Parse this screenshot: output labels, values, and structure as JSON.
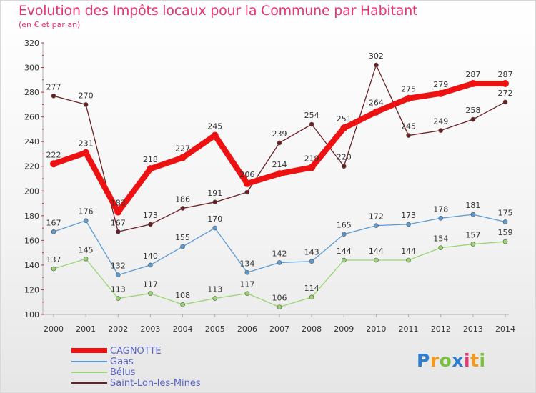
{
  "header": {
    "title": "Evolution des Impôts locaux pour la Commune par Habitant",
    "subtitle": "(en € et par an)"
  },
  "chart_data": {
    "type": "line",
    "title": "Evolution des Impôts locaux pour la Commune par Habitant",
    "subtitle": "(en € et par an)",
    "xlabel": "",
    "ylabel": "",
    "ylim": [
      100,
      320
    ],
    "ytick_step": 20,
    "grid": false,
    "legend_position": "bottom-left",
    "x": [
      "2000",
      "2001",
      "2002",
      "2003",
      "2004",
      "2005",
      "2006",
      "2007",
      "2008",
      "2009",
      "2010",
      "2011",
      "2012",
      "2013",
      "2014"
    ],
    "series": [
      {
        "name": "Saint-Lon-les-Mines",
        "color": "#6b1f23",
        "values": [
          277,
          270,
          167,
          173,
          186,
          191,
          199,
          239,
          254,
          220,
          302,
          245,
          249,
          258,
          272
        ],
        "labels": [
          "277",
          "270",
          "167",
          "173",
          "186",
          "191",
          "",
          "239",
          "254",
          "220",
          "302",
          "245",
          "249",
          "258",
          "272"
        ]
      },
      {
        "name": "Bélus",
        "color": "#99d671",
        "values": [
          137,
          145,
          113,
          117,
          108,
          113,
          117,
          106,
          114,
          144,
          144,
          144,
          154,
          157,
          159
        ],
        "labels": [
          "137",
          "145",
          "113",
          "117",
          "108",
          "113",
          "117",
          "106",
          "114",
          "144",
          "144",
          "144",
          "154",
          "157",
          "159"
        ]
      },
      {
        "name": "Gaas",
        "color": "#5d9bd3",
        "values": [
          167,
          176,
          132,
          140,
          155,
          170,
          134,
          142,
          143,
          165,
          172,
          173,
          178,
          181,
          175
        ],
        "labels": [
          "167",
          "176",
          "132",
          "140",
          "155",
          "170",
          "134",
          "142",
          "143",
          "165",
          "172",
          "173",
          "178",
          "181",
          "175"
        ]
      },
      {
        "name": "CAGNOTTE",
        "color": "#ee1111",
        "values": [
          222,
          231,
          183,
          218,
          227,
          245,
          206,
          214,
          219,
          251,
          264,
          275,
          279,
          287,
          287
        ],
        "labels": [
          "222",
          "231",
          "183",
          "218",
          "227",
          "245",
          "206",
          "214",
          "219",
          "251",
          "264",
          "275",
          "279",
          "287",
          "287"
        ]
      }
    ]
  },
  "legend": {
    "items": [
      {
        "name": "CAGNOTTE",
        "color": "#ee1111"
      },
      {
        "name": "Gaas",
        "color": "#5d9bd3"
      },
      {
        "name": "Bélus",
        "color": "#99d671"
      },
      {
        "name": "Saint-Lon-les-Mines",
        "color": "#6b1f23"
      }
    ]
  },
  "logo": {
    "letters": [
      {
        "char": "P",
        "color": "#2e7dd1"
      },
      {
        "char": "r",
        "color": "#f39a1e"
      },
      {
        "char": "o",
        "color": "#7cc242"
      },
      {
        "char": "x",
        "color": "#2e7dd1"
      },
      {
        "char": "i",
        "color": "#e8336f"
      },
      {
        "char": "t",
        "color": "#f39a1e"
      },
      {
        "char": "i",
        "color": "#7cc242"
      }
    ]
  }
}
